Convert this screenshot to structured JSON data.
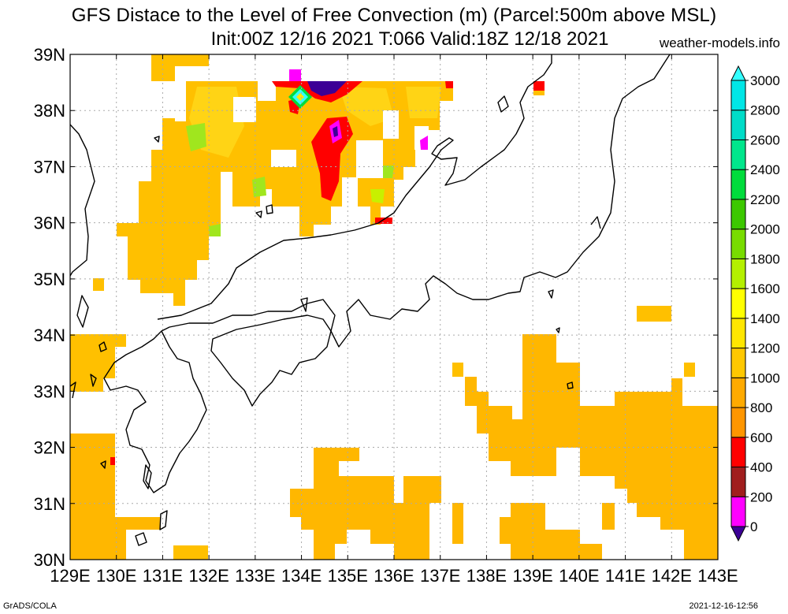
{
  "title_line1": "GFS Distace to the Level of Free Convection (m) (Parcel:500m above MSL)",
  "title_line2": "Init:00Z 12/16 2021 T:066 Valid:18Z 12/18 2021",
  "site": "weather-models.info",
  "footer_left": "GrADS/COLA",
  "footer_right": "2021-12-16-12:56",
  "map": {
    "lon_range": [
      129,
      143
    ],
    "lat_range": [
      30,
      39
    ],
    "lon_ticks": [
      "129E",
      "130E",
      "131E",
      "132E",
      "133E",
      "134E",
      "135E",
      "136E",
      "137E",
      "138E",
      "139E",
      "140E",
      "141E",
      "142E",
      "143E"
    ],
    "lat_ticks": [
      "30N",
      "31N",
      "32N",
      "33N",
      "34N",
      "35N",
      "36N",
      "37N",
      "38N",
      "39N"
    ],
    "grid": true
  },
  "colorbar": {
    "unit": "m",
    "labels": [
      "0",
      "200",
      "400",
      "600",
      "800",
      "1000",
      "1200",
      "1400",
      "1600",
      "1800",
      "2000",
      "2200",
      "2400",
      "2600",
      "2800",
      "3000"
    ],
    "colors": [
      "#3c0096",
      "#ff00ff",
      "#a01e1e",
      "#ff0000",
      "#ff9600",
      "#ffaa00",
      "#ffc800",
      "#ffe600",
      "#ffff00",
      "#b4f000",
      "#78dc00",
      "#3cc800",
      "#00dc3c",
      "#00e68c",
      "#00dcc8",
      "#00e6e6",
      "#33ffff"
    ]
  },
  "colors": {
    "main_fill": "#ffb700",
    "mid_fill": "#ffc800",
    "light_fill": "#ffe600",
    "green_fill": "#a0e61e",
    "red": "#ff0000",
    "magenta": "#ff00ff",
    "purple": "#3c0096"
  }
}
